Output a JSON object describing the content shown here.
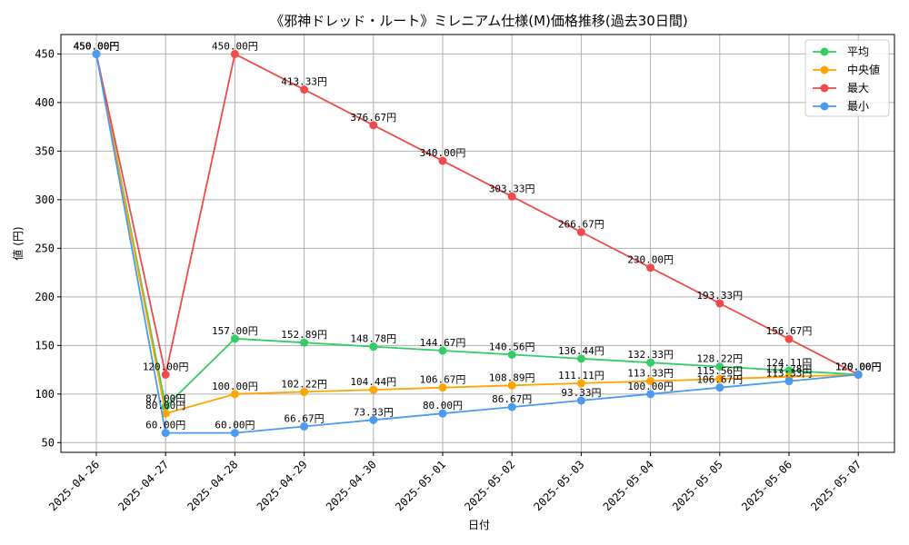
{
  "chart_data": {
    "type": "line",
    "title": "《邪神ドレッド・ルート》ミレニアム仕様(M)価格推移(過去30日間)",
    "xlabel": "日付",
    "ylabel": "値 (円)",
    "categories": [
      "2025-04-26",
      "2025-04-27",
      "2025-04-28",
      "2025-04-29",
      "2025-04-30",
      "2025-05-01",
      "2025-05-02",
      "2025-05-03",
      "2025-05-04",
      "2025-05-05",
      "2025-05-06",
      "2025-05-07"
    ],
    "ylim": [
      40,
      470
    ],
    "yticks": [
      50,
      100,
      150,
      200,
      250,
      300,
      350,
      400,
      450
    ],
    "grid": true,
    "legend_position": "top-right",
    "label_suffix": "円",
    "series": [
      {
        "name": "平均",
        "color": "#33cc66",
        "values": [
          450.0,
          87.0,
          157.0,
          152.89,
          148.78,
          144.67,
          140.56,
          136.44,
          132.33,
          128.22,
          124.11,
          120.0
        ]
      },
      {
        "name": "中央値",
        "color": "#ffa500",
        "values": [
          450.0,
          80.0,
          100.0,
          102.22,
          104.44,
          106.67,
          108.89,
          111.11,
          113.33,
          115.56,
          117.78,
          120.0
        ]
      },
      {
        "name": "最大",
        "color": "#f04a4a",
        "values": [
          450.0,
          120.0,
          450.0,
          413.33,
          376.67,
          340.0,
          303.33,
          266.67,
          230.0,
          193.33,
          156.67,
          120.0
        ]
      },
      {
        "name": "最小",
        "color": "#4a9af0",
        "values": [
          450.0,
          60.0,
          60.0,
          66.67,
          73.33,
          80.0,
          86.67,
          93.33,
          100.0,
          106.67,
          113.33,
          120.0
        ]
      }
    ]
  }
}
